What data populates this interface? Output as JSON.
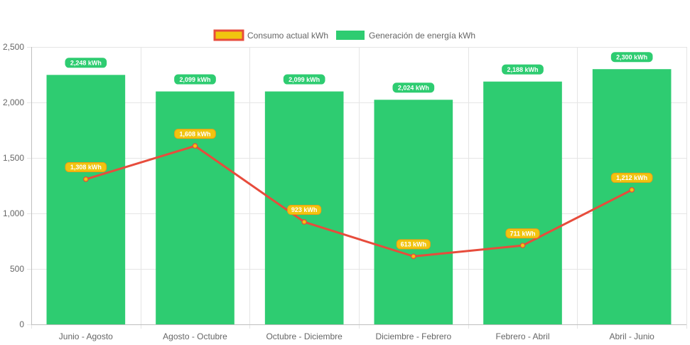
{
  "chart_data": {
    "type": "bar",
    "categories": [
      "Junio - Agosto",
      "Agosto - Octubre",
      "Octubre - Diciembre",
      "Diciembre - Febrero",
      "Febrero - Abril",
      "Abril - Junio"
    ],
    "ylim": [
      0,
      2500
    ],
    "yticks": [
      0,
      500,
      1000,
      1500,
      2000,
      2500
    ],
    "ytick_labels": [
      "0",
      "500",
      "1,000",
      "1,500",
      "2,000",
      "2,500"
    ],
    "grid": true,
    "legend_position": "top-center",
    "series": [
      {
        "name": "Consumo actual kWh",
        "type": "line",
        "color": "#e74c3c",
        "point_color": "#f1c40f",
        "values": [
          1308,
          1608,
          923,
          613,
          711,
          1212
        ],
        "labels": [
          "1,308 kWh",
          "1,608 kWh",
          "923 kWh",
          "613 kWh",
          "711 kWh",
          "1,212 kWh"
        ],
        "label_bg": "#f1c40f",
        "label_border": "#f39c12"
      },
      {
        "name": "Generación de energía kWh",
        "type": "bar",
        "color": "#2ecc71",
        "values": [
          2248,
          2099,
          2099,
          2024,
          2188,
          2300
        ],
        "labels": [
          "2,248 kWh",
          "2,099 kWh",
          "2,099 kWh",
          "2,024 kWh",
          "2,188 kWh",
          "2,300 kWh"
        ],
        "label_bg": "#2ecc71"
      }
    ],
    "title": "",
    "xlabel": "",
    "ylabel": ""
  }
}
